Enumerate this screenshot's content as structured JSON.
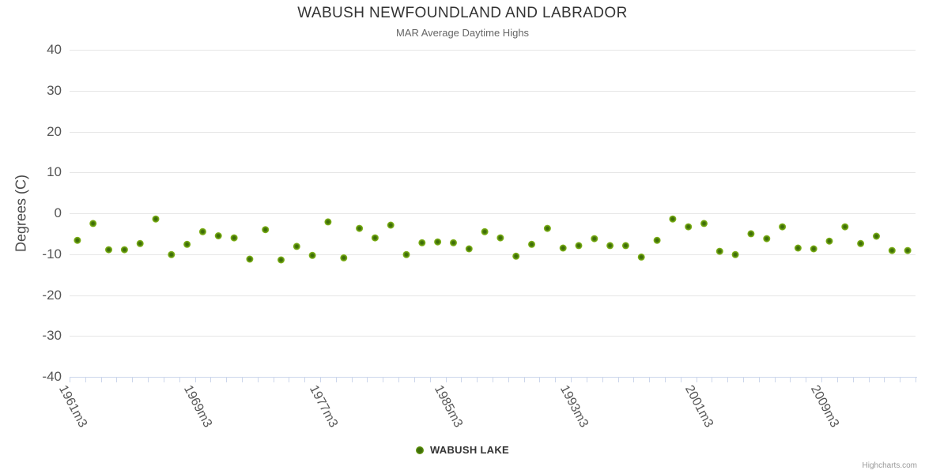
{
  "credits": {
    "text": "Highcharts.com"
  },
  "chart_data": {
    "type": "scatter",
    "title": "WABUSH NEWFOUNDLAND AND LABRADOR",
    "subtitle": "MAR Average Daytime Highs",
    "xlabel": "",
    "ylabel": "Degrees (C)",
    "ylim": [
      -40,
      40
    ],
    "ytick_interval": 10,
    "yticks": [
      40,
      30,
      20,
      10,
      0,
      -10,
      -20,
      -30,
      -40
    ],
    "grid": true,
    "legend_position": "bottom-center",
    "xlabel_step": 8,
    "xlabels_shown": [
      "1961m3",
      "1969m3",
      "1977m3",
      "1985m3",
      "1993m3",
      "2001m3",
      "2009m3"
    ],
    "categories": [
      "1961m3",
      "1962m3",
      "1963m3",
      "1964m3",
      "1965m3",
      "1966m3",
      "1967m3",
      "1968m3",
      "1969m3",
      "1970m3",
      "1971m3",
      "1972m3",
      "1973m3",
      "1974m3",
      "1975m3",
      "1976m3",
      "1977m3",
      "1978m3",
      "1979m3",
      "1980m3",
      "1981m3",
      "1982m3",
      "1983m3",
      "1984m3",
      "1985m3",
      "1986m3",
      "1987m3",
      "1988m3",
      "1989m3",
      "1990m3",
      "1991m3",
      "1992m3",
      "1993m3",
      "1994m3",
      "1995m3",
      "1996m3",
      "1997m3",
      "1998m3",
      "1999m3",
      "2000m3",
      "2001m3",
      "2002m3",
      "2003m3",
      "2004m3",
      "2005m3",
      "2006m3",
      "2007m3",
      "2008m3",
      "2009m3",
      "2010m3",
      "2011m3",
      "2012m3",
      "2013m3",
      "2014m3"
    ],
    "series": [
      {
        "name": "WABUSH LAKE",
        "color": "#8bbc21",
        "marker_core_color": "#3e6e08",
        "marker_mid_color": "#65990f",
        "values": [
          -6.6,
          -2.5,
          -8.9,
          -8.9,
          -7.4,
          -1.4,
          -10.1,
          -7.6,
          -4.5,
          -5.5,
          -6.0,
          -11.2,
          -4.0,
          -11.4,
          -8.1,
          -10.3,
          -2.1,
          -10.9,
          -3.7,
          -6.0,
          -2.9,
          -10.1,
          -7.2,
          -7.0,
          -7.2,
          -8.7,
          -4.5,
          -6.0,
          -10.5,
          -7.6,
          -3.7,
          -8.5,
          -7.9,
          -6.2,
          -7.9,
          -7.9,
          -10.7,
          -6.6,
          -1.4,
          -3.3,
          -2.5,
          -9.3,
          -10.1,
          -5.0,
          -6.2,
          -3.3,
          -8.5,
          -8.7,
          -6.8,
          -3.3,
          -7.4,
          -5.6,
          -9.1,
          -9.1
        ]
      }
    ],
    "colors": {
      "grid": "#e6e6e6",
      "axis": "#ccd6eb",
      "tick": "#ccd6eb",
      "label": "#555555",
      "title": "#333333",
      "subtitle": "#666666",
      "credit": "#999999"
    }
  }
}
